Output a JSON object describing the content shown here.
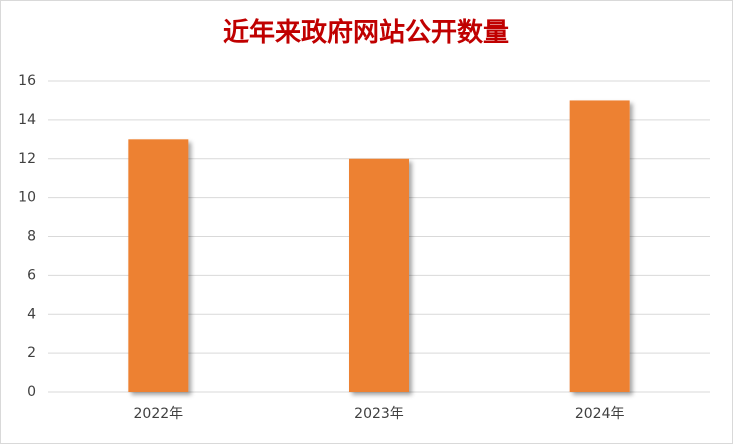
{
  "chart_data": {
    "type": "bar",
    "title": "近年来政府网站公开数量",
    "categories": [
      "2022年",
      "2023年",
      "2024年"
    ],
    "values": [
      13,
      12,
      15
    ],
    "color": "#ed8133",
    "ylim": [
      0,
      16
    ],
    "yticks": [
      0,
      2,
      4,
      6,
      8,
      10,
      12,
      14,
      16
    ],
    "grid": true
  }
}
